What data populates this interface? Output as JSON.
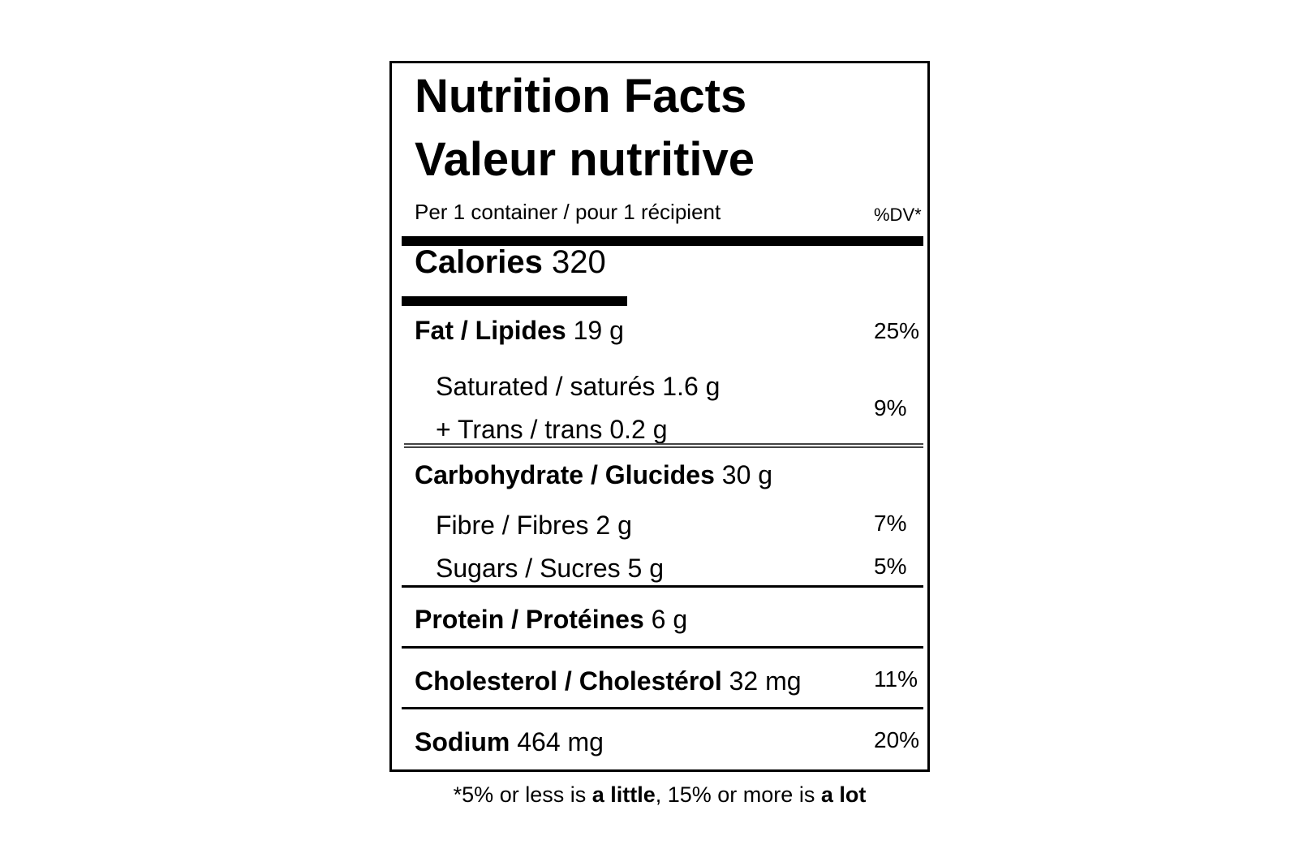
{
  "label": {
    "title_en": "Nutrition Facts",
    "title_fr": "Valeur nutritive",
    "serving": "Per 1 container / pour 1 récipient",
    "dv_header": "%DV*",
    "calories_label": "Calories",
    "calories_value": "320",
    "fat": {
      "label": "Fat / Lipides",
      "amount": "19 g",
      "dv": "25%"
    },
    "saturated": {
      "label": "Saturated / saturés 1.6 g"
    },
    "trans": {
      "label": "+ Trans / trans 0.2 g"
    },
    "sat_trans_dv": "9%",
    "carbohydrate": {
      "label": "Carbohydrate / Glucides",
      "amount": "30 g"
    },
    "fibre": {
      "label": "Fibre / Fibres 2 g",
      "dv": "7%"
    },
    "sugars": {
      "label": "Sugars / Sucres 5 g",
      "dv": "5%"
    },
    "protein": {
      "label": "Protein / Protéines",
      "amount": "6 g"
    },
    "cholesterol": {
      "label": "Cholesterol / Cholestérol",
      "amount": "32 mg",
      "dv": "11%"
    },
    "sodium": {
      "label": "Sodium",
      "amount": "464 mg",
      "dv": "20%"
    }
  },
  "footnote": {
    "part1": "*5% or less is ",
    "bold1": "a little",
    "part2": ", 15% or more is ",
    "bold2": "a lot"
  }
}
